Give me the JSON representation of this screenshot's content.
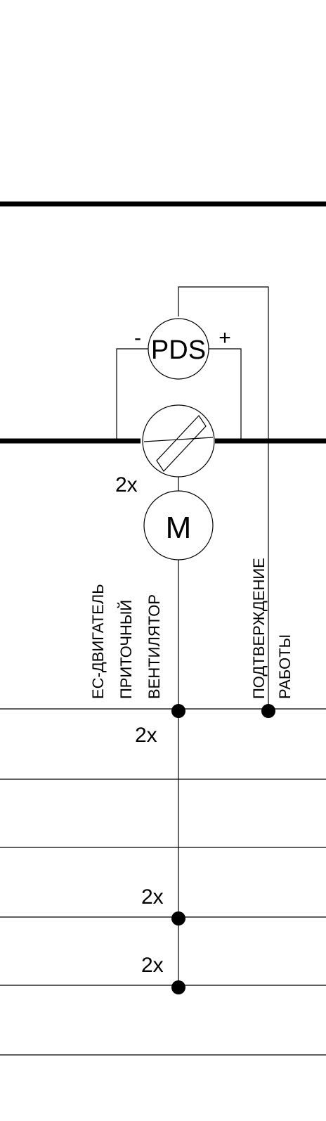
{
  "sensor": {
    "label": "PDS",
    "minus": "-",
    "plus": "+"
  },
  "damper": {
    "multiplier": "2x"
  },
  "motor": {
    "label": "M"
  },
  "labels": {
    "fan_line1": "ЕС-ДВИГАТЕЛЬ",
    "fan_line2": "ПРИТОЧНЫЙ",
    "fan_line3": "ВЕНТИЛЯТОР",
    "confirm_line1": "ПОДТВЕРЖДЕНИЕ",
    "confirm_line2": "РАБОТЫ"
  },
  "multipliers": {
    "bus1": "2x",
    "bus4": "2x",
    "bus5": "2x"
  },
  "colors": {
    "line": "#000000",
    "background": "#ffffff"
  }
}
